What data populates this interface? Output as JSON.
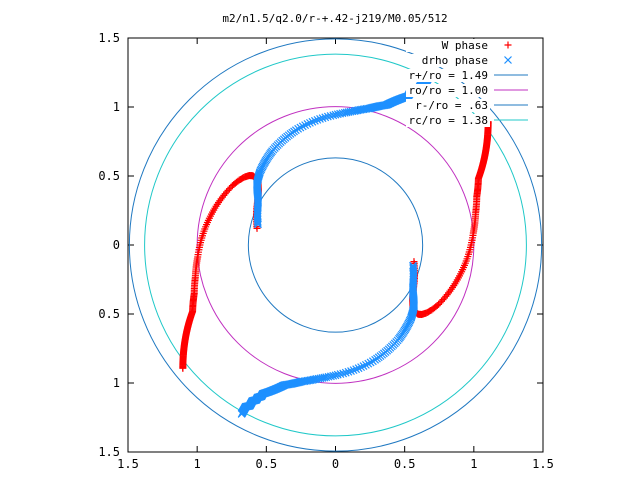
{
  "chart_data": {
    "type": "scatter",
    "title": "m2/n1.5/q2.0/r-+.42-j219/M0.05/512",
    "xlim": [
      -1.5,
      1.5
    ],
    "ylim": [
      -1.5,
      1.5
    ],
    "x_ticks": [
      -1.5,
      -1,
      -0.5,
      0,
      0.5,
      1,
      1.5
    ],
    "y_ticks": [
      -1.5,
      -1,
      -0.5,
      0,
      0.5,
      1,
      1.5
    ],
    "x_tick_labels": [
      "1.5",
      "1",
      "0.5",
      "0",
      "0.5",
      "1",
      "1.5"
    ],
    "y_tick_labels": [
      "1.5",
      "1",
      "0.5",
      "0",
      "0.5",
      "1",
      "1.5"
    ],
    "grid": false,
    "legend_position": "top-right",
    "series": [
      {
        "name": "W phase",
        "kind": "points",
        "marker": "plus",
        "color": "#ff0000",
        "arms": [
          {
            "radius": [
              0.58,
              0.6,
              0.62,
              0.64,
              0.66,
              0.68,
              0.7,
              0.72,
              0.74,
              0.76,
              0.78,
              0.8,
              0.82,
              0.84,
              0.86,
              0.88,
              0.9,
              0.92,
              0.94,
              0.96,
              0.98,
              1.0,
              1.02,
              1.04,
              1.06,
              1.08,
              1.1,
              1.12,
              1.14,
              1.16,
              1.18,
              1.2,
              1.22,
              1.24,
              1.26,
              1.28,
              1.3,
              1.32,
              1.34,
              1.36,
              1.38,
              1.4,
              1.42
            ],
            "angle_deg": [
              168,
              162,
              157,
              152,
              148,
              145,
              143,
              141,
              140,
              140,
              140,
              141,
              143,
              146,
              150,
              155,
              160,
              165,
              170,
              175,
              180,
              185,
              189,
              193,
              196,
              199,
              201,
              203,
              205,
              206,
              207,
              208,
              209,
              210,
              211,
              212,
              213,
              214,
              215,
              216,
              217,
              218,
              219
            ]
          },
          {
            "radius": [
              0.58,
              0.6,
              0.62,
              0.64,
              0.66,
              0.68,
              0.7,
              0.72,
              0.74,
              0.76,
              0.78,
              0.8,
              0.82,
              0.84,
              0.86,
              0.88,
              0.9,
              0.92,
              0.94,
              0.96,
              0.98,
              1.0,
              1.02,
              1.04,
              1.06,
              1.08,
              1.1,
              1.12,
              1.14,
              1.16,
              1.18,
              1.2,
              1.22,
              1.24,
              1.26,
              1.28,
              1.3,
              1.32,
              1.34,
              1.36,
              1.38,
              1.4,
              1.42
            ],
            "angle_deg": [
              348,
              342,
              337,
              332,
              328,
              325,
              323,
              321,
              320,
              320,
              320,
              321,
              323,
              326,
              330,
              335,
              340,
              345,
              350,
              355,
              0,
              5,
              9,
              13,
              16,
              19,
              21,
              23,
              25,
              26,
              27,
              28,
              29,
              30,
              31,
              32,
              33,
              34,
              35,
              36,
              37,
              38,
              39
            ]
          }
        ]
      },
      {
        "name": "drho phase",
        "kind": "points",
        "marker": "cross",
        "color": "#1e90ff",
        "arms": [
          {
            "radius": [
              0.58,
              0.6,
              0.62,
              0.64,
              0.66,
              0.68,
              0.7,
              0.72,
              0.74,
              0.76,
              0.78,
              0.8,
              0.82,
              0.84,
              0.86,
              0.88,
              0.9,
              0.92,
              0.94,
              0.96,
              0.98,
              1.0,
              1.02,
              1.04,
              1.06,
              1.08,
              1.1,
              1.12,
              1.14,
              1.16,
              1.18,
              1.2,
              1.22,
              1.24,
              1.26,
              1.28,
              1.3,
              1.32,
              1.34,
              1.36,
              1.38,
              1.4
            ],
            "angle_deg": [
              165,
              160,
              155,
              151,
              148,
              146,
              144,
              142,
              139,
              136,
              132,
              128,
              124,
              119,
              114,
              109,
              103,
              97,
              91,
              86,
              82,
              79,
              76,
              74,
              72,
              70,
              69,
              68,
              67,
              66,
              65,
              64,
              64,
              63,
              63,
              62,
              62,
              62,
              61,
              61,
              61,
              61
            ]
          },
          {
            "radius": [
              0.58,
              0.6,
              0.62,
              0.64,
              0.66,
              0.68,
              0.7,
              0.72,
              0.74,
              0.76,
              0.78,
              0.8,
              0.82,
              0.84,
              0.86,
              0.88,
              0.9,
              0.92,
              0.94,
              0.96,
              0.98,
              1.0,
              1.02,
              1.04,
              1.06,
              1.08,
              1.1,
              1.12,
              1.14,
              1.16,
              1.18,
              1.2,
              1.22,
              1.24,
              1.26,
              1.28,
              1.3,
              1.32,
              1.34,
              1.36,
              1.38,
              1.4
            ],
            "angle_deg": [
              345,
              340,
              335,
              331,
              328,
              326,
              324,
              322,
              319,
              316,
              312,
              308,
              304,
              299,
              294,
              289,
              283,
              277,
              271,
              266,
              262,
              259,
              256,
              254,
              252,
              250,
              249,
              248,
              247,
              246,
              245,
              244,
              244,
              243,
              243,
              242,
              242,
              242,
              241,
              241,
              241,
              241
            ]
          }
        ]
      },
      {
        "name": "r+/ro = 1.49",
        "kind": "circle",
        "radius": 1.49,
        "color": "#1f78c1"
      },
      {
        "name": "ro/ro = 1.00",
        "kind": "circle",
        "radius": 1.0,
        "color": "#c030c0"
      },
      {
        "name": "r-/ro = .63",
        "kind": "circle",
        "radius": 0.63,
        "color": "#1f78c1"
      },
      {
        "name": "rc/ro = 1.38",
        "kind": "circle",
        "radius": 1.38,
        "color": "#20c8c8"
      }
    ]
  }
}
